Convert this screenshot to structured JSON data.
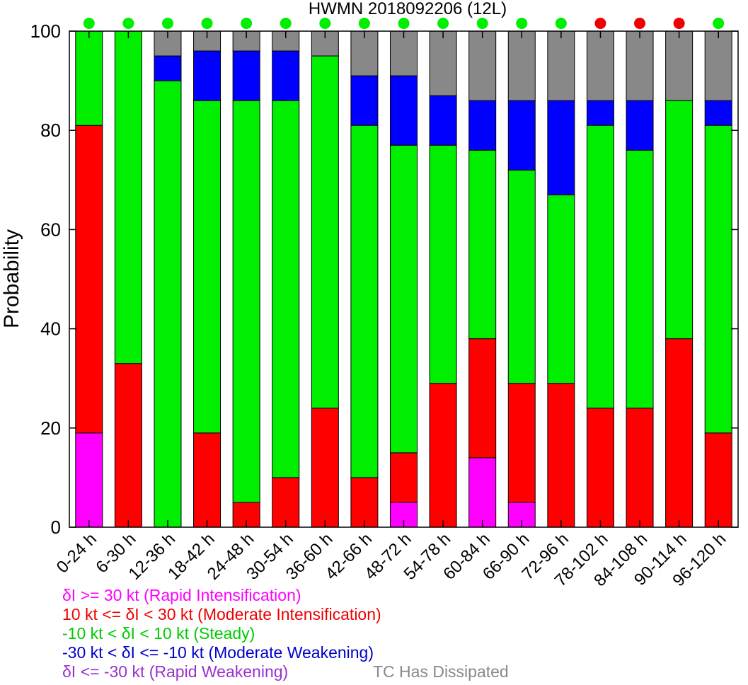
{
  "chart_data": {
    "type": "bar",
    "stacked": true,
    "title": "HWMN 2018092206  (12L)",
    "ylabel": "Probability",
    "xlabel": "",
    "ylim": [
      0,
      100
    ],
    "yticks": [
      0,
      20,
      40,
      60,
      80,
      100
    ],
    "grid": false,
    "categories": [
      "0-24 h",
      "6-30 h",
      "12-36 h",
      "18-42 h",
      "24-48 h",
      "30-54 h",
      "36-60 h",
      "42-66 h",
      "48-72 h",
      "54-78 h",
      "60-84 h",
      "66-90 h",
      "72-96 h",
      "78-102 h",
      "84-108 h",
      "90-114 h",
      "96-120 h"
    ],
    "series": [
      {
        "key": "rapid_intensification",
        "color": "#ff00ff",
        "values": [
          19,
          0,
          0,
          0,
          0,
          0,
          0,
          0,
          5,
          0,
          14,
          5,
          0,
          0,
          0,
          0,
          0
        ]
      },
      {
        "key": "moderate_intensification",
        "color": "#ff0000",
        "values": [
          62,
          33,
          0,
          19,
          5,
          10,
          24,
          10,
          10,
          29,
          24,
          24,
          29,
          24,
          24,
          38,
          19
        ]
      },
      {
        "key": "steady",
        "color": "#00ee00",
        "values": [
          19,
          67,
          90,
          67,
          81,
          76,
          71,
          71,
          62,
          48,
          38,
          43,
          38,
          57,
          52,
          48,
          62
        ]
      },
      {
        "key": "moderate_weakening",
        "color": "#0000ff",
        "values": [
          0,
          0,
          5,
          10,
          10,
          10,
          0,
          10,
          14,
          10,
          10,
          14,
          19,
          5,
          10,
          0,
          5
        ]
      },
      {
        "key": "rapid_weakening",
        "color": "#9a32cd",
        "values": [
          0,
          0,
          0,
          0,
          0,
          0,
          0,
          0,
          0,
          0,
          0,
          0,
          0,
          0,
          0,
          0,
          0
        ]
      },
      {
        "key": "tc_dissipated",
        "color": "#888888",
        "values": [
          0,
          0,
          5,
          4,
          4,
          4,
          5,
          9,
          9,
          13,
          14,
          14,
          14,
          14,
          14,
          14,
          14
        ]
      }
    ],
    "status_dots": [
      "green",
      "green",
      "green",
      "green",
      "green",
      "green",
      "green",
      "green",
      "green",
      "green",
      "green",
      "green",
      "green",
      "red",
      "red",
      "red",
      "green"
    ],
    "status_colors": {
      "green": "#00ee00",
      "red": "#ee0000"
    },
    "legend": {
      "placement": "bottom-left",
      "entries": [
        {
          "label": "δI >= 30 kt (Rapid Intensification)",
          "color": "#ff00ff"
        },
        {
          "label": "10 kt <= δI < 30 kt (Moderate Intensification)",
          "color": "#ee0000"
        },
        {
          "label": "-10 kt < δI < 10 kt (Steady)",
          "color": "#00cc00"
        },
        {
          "label": "-30 kt < δI <= -10 kt (Moderate Weakening)",
          "color": "#0000cc"
        },
        {
          "label": "δI <= -30 kt (Rapid Weakening)",
          "color": "#9a32cd"
        },
        {
          "label": "TC Has Dissipated",
          "color": "#888888"
        }
      ]
    }
  }
}
